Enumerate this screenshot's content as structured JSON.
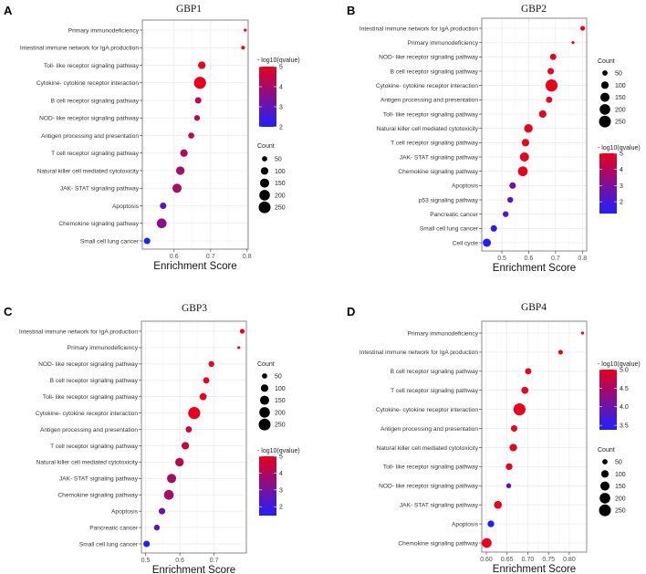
{
  "colors": {
    "low": "#1f1fff",
    "high": "#e8001c",
    "grid": "#ebebeb",
    "panel_border": "#888888"
  },
  "chart_data": [
    {
      "type": "scatter",
      "panel_label": "A",
      "title": "GBP1",
      "xlabel": "Enrichment Score",
      "ylabel": "",
      "xlim": [
        0.513,
        0.803
      ],
      "xticks": [
        0.6,
        0.7,
        0.8
      ],
      "xtick_labels": [
        "0.6",
        "0.7",
        "0.8"
      ],
      "grid": true,
      "categories": [
        "Primary immunodeficiency",
        "Intestinal immune network for IgA production",
        "Toll- like receptor signaling pathway",
        "Cytokine- cytokine receptor interaction",
        "B cell receptor signaling pathway",
        "NOD- like receptor signaling pathway",
        "Antigen processing and presentation",
        "T cell receptor signaling pathway",
        "Natural killer cell mediated cytotoxicity",
        "JAK- STAT signaling pathway",
        "Apoptosis",
        "Chemokine signaling pathway",
        "Small cell lung cancer"
      ],
      "x": [
        0.795,
        0.789,
        0.676,
        0.671,
        0.666,
        0.663,
        0.647,
        0.627,
        0.617,
        0.608,
        0.57,
        0.566,
        0.526
      ],
      "count": [
        15,
        25,
        100,
        260,
        75,
        60,
        65,
        100,
        130,
        150,
        75,
        170,
        75
      ],
      "neg_log10_qvalue": [
        5,
        5,
        4.9,
        5,
        4.3,
        4.3,
        4.3,
        4.2,
        4.0,
        4.1,
        2.8,
        3.6,
        2.0
      ],
      "color_legend": {
        "title": "- log10(qvalue)",
        "range": [
          2,
          5
        ],
        "ticks": [
          5,
          4,
          3,
          2
        ],
        "tick_labels": [
          "5",
          "4",
          "3",
          "2"
        ],
        "placement": "right-top"
      },
      "size_legend": {
        "title": "Count",
        "ticks": [
          50,
          100,
          150,
          200,
          250
        ],
        "tick_labels": [
          "50",
          "100",
          "150",
          "200",
          "250"
        ],
        "placement": "right-bottom"
      }
    },
    {
      "type": "scatter",
      "panel_label": "B",
      "title": "GBP2",
      "xlabel": "Enrichment Score",
      "ylabel": "",
      "xlim": [
        0.425,
        0.816
      ],
      "xticks": [
        0.5,
        0.6,
        0.7,
        0.8
      ],
      "xtick_labels": [
        "0.5",
        "0.6",
        "0.7",
        "0.8"
      ],
      "grid": true,
      "categories": [
        "Intestinal immune network for IgA production",
        "Primary immunodeficiency",
        "NOD- like receptor signaling pathway",
        "B cell receptor signaling pathway",
        "Cytokine- cytokine receptor interaction",
        "Antigen processing and presentation",
        "Toll- like receptor signaling pathway",
        "Natural killer cell mediated cytotoxicity",
        "T cell receptor signaling pathway",
        "JAK- STAT signaling pathway",
        "Chemokine signaling pathway",
        "Apoptosis",
        "p53 signaling pathway",
        "Pancreatic cancer",
        "Small cell lung cancer",
        "Cell cycle"
      ],
      "x": [
        0.801,
        0.765,
        0.691,
        0.682,
        0.685,
        0.676,
        0.652,
        0.599,
        0.588,
        0.584,
        0.578,
        0.54,
        0.531,
        0.514,
        0.47,
        0.444
      ],
      "count": [
        40,
        15,
        70,
        75,
        260,
        70,
        100,
        130,
        100,
        150,
        170,
        75,
        60,
        60,
        75,
        120
      ],
      "neg_log10_qvalue": [
        5,
        5,
        5,
        5,
        5,
        5,
        5,
        5,
        5,
        5,
        5,
        2.7,
        2.3,
        2.1,
        1.5,
        1.4
      ],
      "color_legend": {
        "title": "- log10(qvalue)",
        "range": [
          1.27,
          5
        ],
        "ticks": [
          5,
          4,
          3,
          2
        ],
        "tick_labels": [
          "5",
          "4",
          "3",
          "2"
        ],
        "placement": "right-bottom"
      },
      "size_legend": {
        "title": "Count",
        "ticks": [
          50,
          100,
          150,
          200,
          250
        ],
        "tick_labels": [
          "50",
          "100",
          "150",
          "200",
          "250"
        ],
        "placement": "right-top"
      }
    },
    {
      "type": "scatter",
      "panel_label": "C",
      "title": "GBP3",
      "xlabel": "Enrichment Score",
      "ylabel": "",
      "xlim": [
        0.488,
        0.794
      ],
      "xticks": [
        0.5,
        0.6,
        0.7
      ],
      "xtick_labels": [
        "0.5",
        "0.6",
        "0.7"
      ],
      "grid": true,
      "categories": [
        "Intestinal immune network for IgA production",
        "Primary immunodeficiency",
        "NOD- like receptor signaling pathway",
        "B cell receptor signaling pathway",
        "Toll- like receptor signaling pathway",
        "Cytokine- cytokine receptor interaction",
        "Antigen processing and presentation",
        "T cell receptor signaling pathway",
        "Natural killer cell mediated cytotoxicity",
        "JAK- STAT signaling pathway",
        "Chemokine signaling pathway",
        "Apoptosis",
        "Pancreatic cancer",
        "Small cell lung cancer"
      ],
      "x": [
        0.782,
        0.772,
        0.692,
        0.677,
        0.668,
        0.642,
        0.626,
        0.616,
        0.599,
        0.576,
        0.568,
        0.548,
        0.533,
        0.503
      ],
      "count": [
        40,
        15,
        60,
        70,
        90,
        260,
        70,
        100,
        130,
        150,
        170,
        75,
        60,
        75
      ],
      "neg_log10_qvalue": [
        5,
        5,
        5,
        5,
        5,
        5,
        4.5,
        4.5,
        4.2,
        3.9,
        3.9,
        2.8,
        2.3,
        1.5
      ],
      "color_legend": {
        "title": "- log10(qvalue)",
        "range": [
          1.47,
          5
        ],
        "ticks": [
          5,
          4,
          3,
          2
        ],
        "tick_labels": [
          "5",
          "4",
          "3",
          "2"
        ],
        "placement": "right-bottom"
      },
      "size_legend": {
        "title": "Count",
        "ticks": [
          50,
          100,
          150,
          200,
          250
        ],
        "tick_labels": [
          "50",
          "100",
          "150",
          "200",
          "250"
        ],
        "placement": "right-top"
      }
    },
    {
      "type": "scatter",
      "panel_label": "D",
      "title": "GBP4",
      "xlabel": "Enrichment Score",
      "ylabel": "",
      "xlim": [
        0.589,
        0.842
      ],
      "xticks": [
        0.6,
        0.65,
        0.7,
        0.75,
        0.8
      ],
      "xtick_labels": [
        "0.60",
        "0.65",
        "0.70",
        "0.75",
        "0.80"
      ],
      "grid": true,
      "categories": [
        "Primary immunodeficiency",
        "Intestinal immune network for IgA production",
        "B cell receptor signaling pathway",
        "T cell receptor signaling pathway",
        "Cytokine- cytokine receptor interaction",
        "Antigen processing and presentation",
        "Natural killer cell mediated cytotoxicity",
        "Toll- like receptor signaling pathway",
        "NOD- like receptor signaling pathway",
        "JAK- STAT signaling pathway",
        "Apoptosis",
        "Chemokine signaling pathway"
      ],
      "x": [
        0.832,
        0.779,
        0.701,
        0.693,
        0.68,
        0.667,
        0.665,
        0.655,
        0.654,
        0.628,
        0.611,
        0.601
      ],
      "count": [
        15,
        40,
        70,
        90,
        260,
        75,
        100,
        80,
        45,
        110,
        80,
        170
      ],
      "neg_log10_qvalue": [
        5,
        5,
        5,
        5,
        5,
        5,
        5,
        5,
        3.9,
        5,
        3.4,
        5
      ],
      "color_legend": {
        "title": "- log10(qvalue)",
        "range": [
          3.38,
          5
        ],
        "ticks": [
          5.0,
          4.5,
          4.0,
          3.5
        ],
        "tick_labels": [
          "5.0",
          "4.5",
          "4.0",
          "3.5"
        ],
        "placement": "right-top"
      },
      "size_legend": {
        "title": "Count",
        "ticks": [
          50,
          100,
          150,
          200,
          250
        ],
        "tick_labels": [
          "50",
          "100",
          "150",
          "200",
          "250"
        ],
        "placement": "right-bottom"
      }
    }
  ]
}
